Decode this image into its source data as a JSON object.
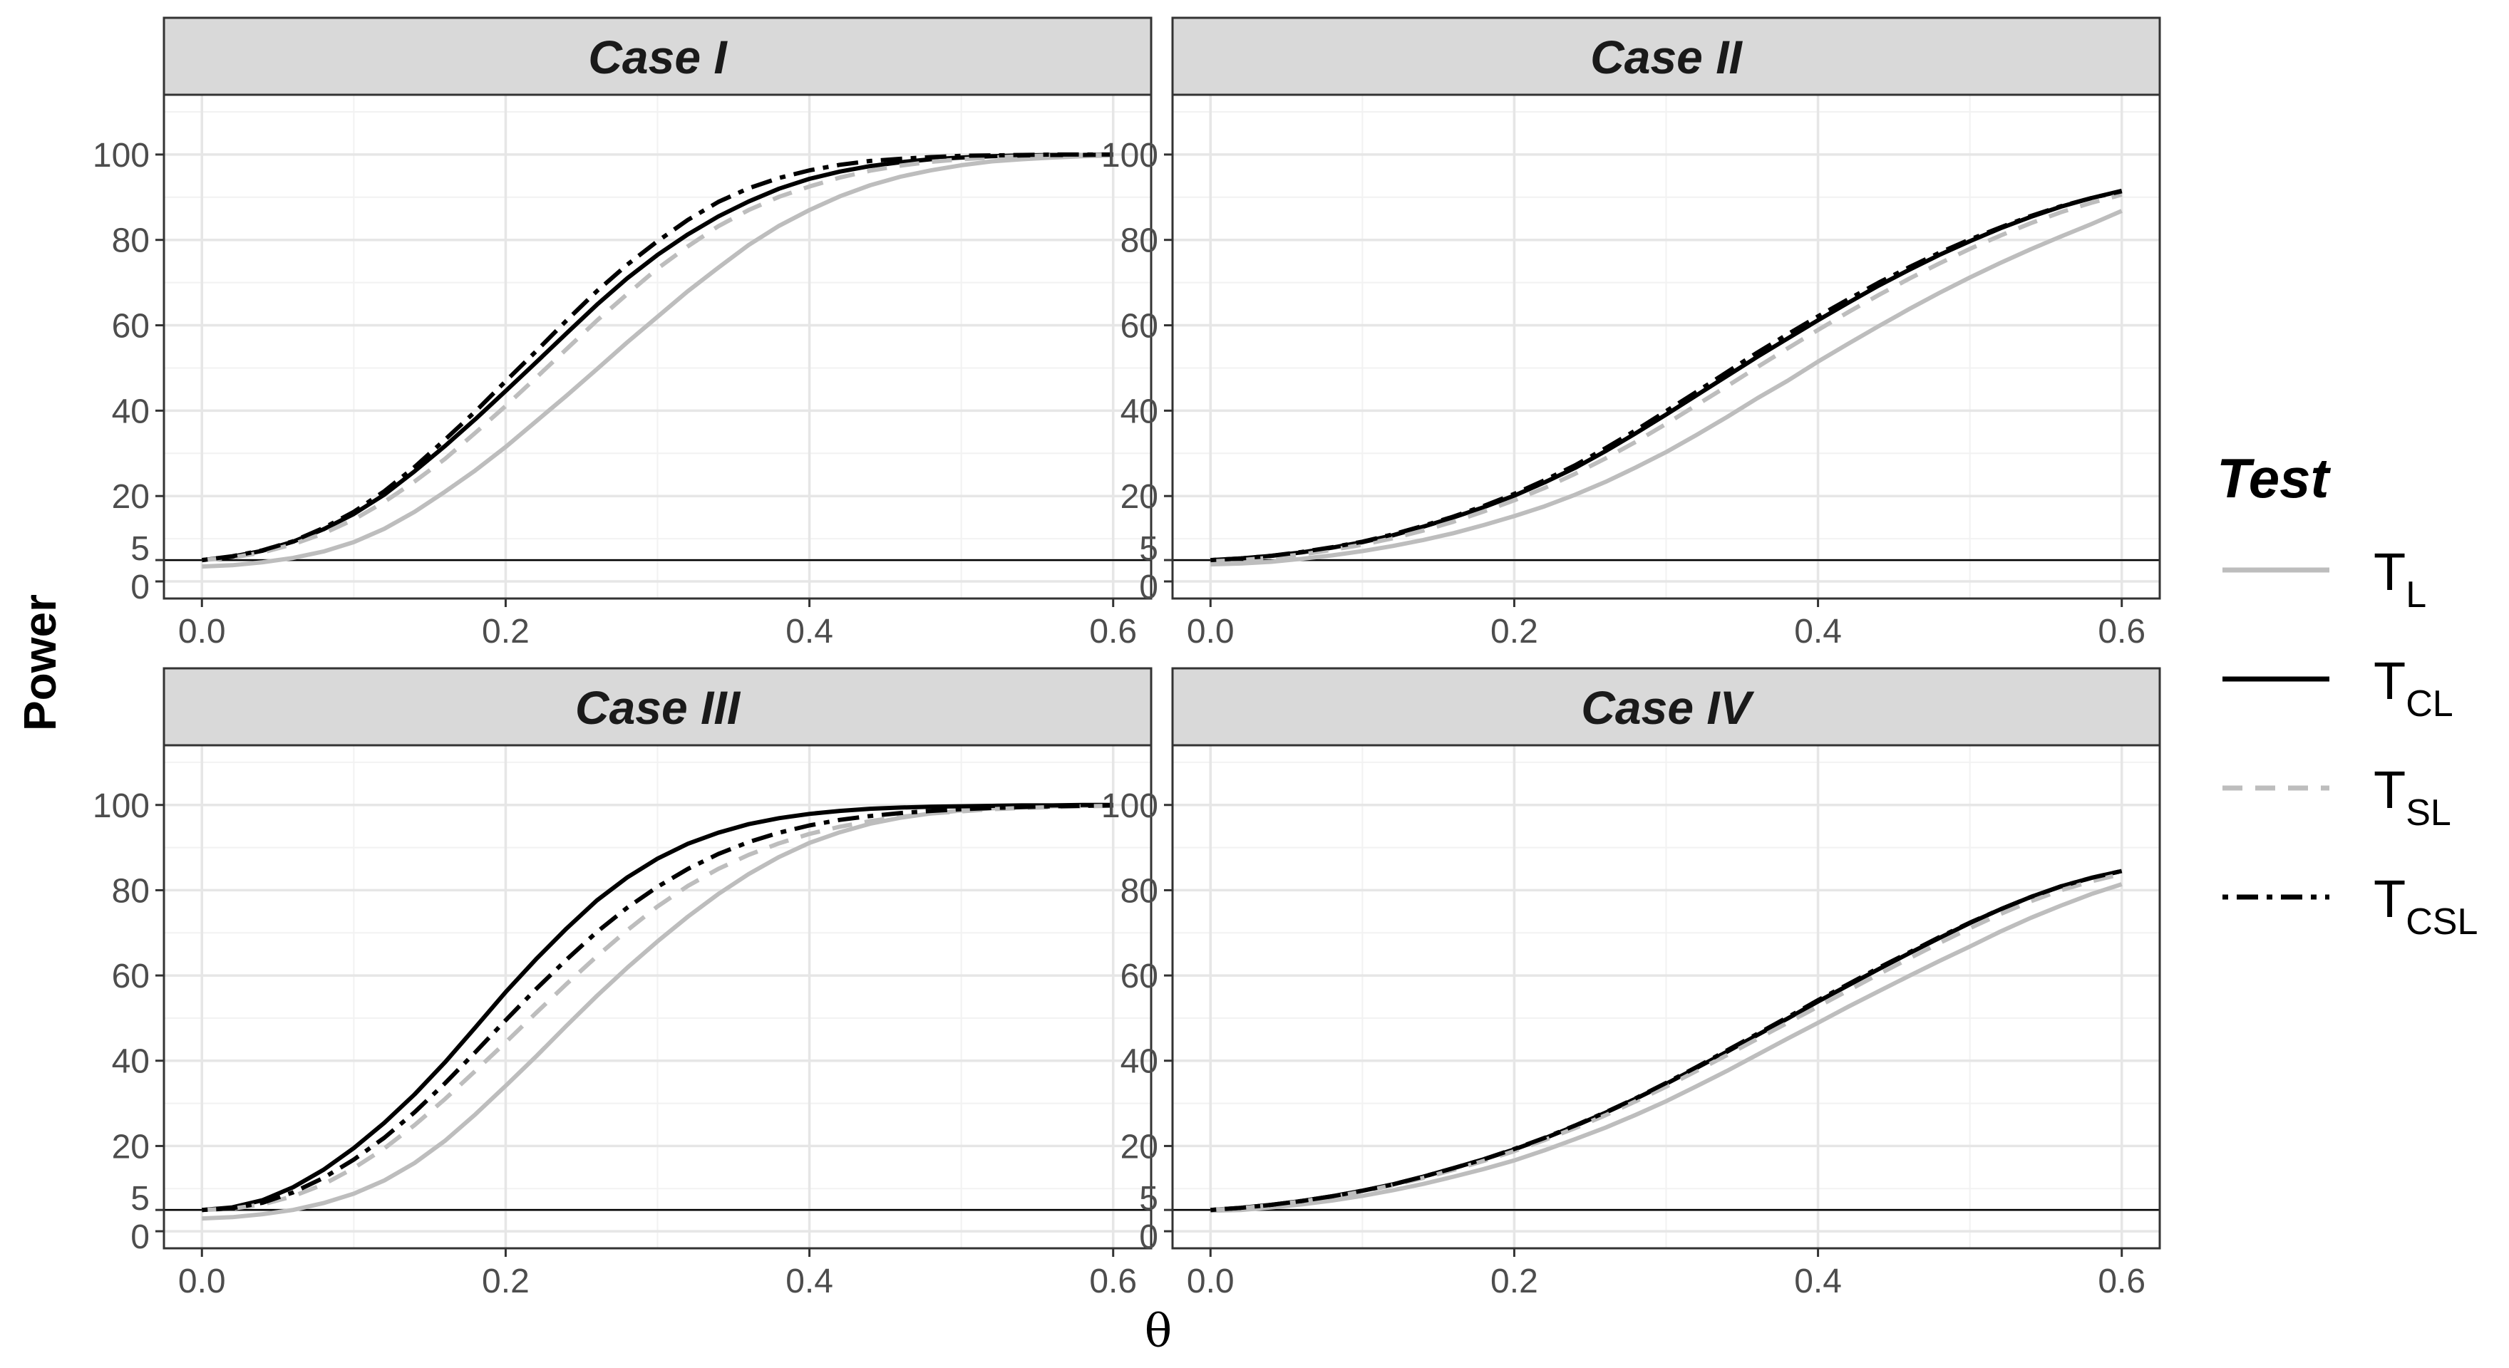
{
  "chart_data": {
    "type": "line",
    "layout": "2x2 facets",
    "ylabel": "Power",
    "xlabel": "θ",
    "xlim": [
      -0.025,
      0.625
    ],
    "ylim": [
      -4,
      114
    ],
    "x_ticks": [
      "0.0",
      "0.2",
      "0.4",
      "0.6"
    ],
    "y_ticks": [
      "0",
      "5",
      "20",
      "40",
      "60",
      "80",
      "100"
    ],
    "reference_line": 5,
    "grid": true,
    "legend": {
      "title": "Test",
      "position": "right",
      "entries": [
        {
          "main": "T",
          "sub": "L"
        },
        {
          "main": "T",
          "sub": "CL"
        },
        {
          "main": "T",
          "sub": "SL"
        },
        {
          "main": "T",
          "sub": "CSL"
        }
      ]
    },
    "series_styles": [
      {
        "color": "#bdbdbd",
        "dash": "solid"
      },
      {
        "color": "#000000",
        "dash": "solid"
      },
      {
        "color": "#bdbdbd",
        "dash": "dashed"
      },
      {
        "color": "#000000",
        "dash": "dotdash"
      }
    ],
    "x": [
      0.0,
      0.02,
      0.04,
      0.06,
      0.08,
      0.1,
      0.12,
      0.14,
      0.16,
      0.18,
      0.2,
      0.22,
      0.24,
      0.26,
      0.28,
      0.3,
      0.32,
      0.34,
      0.36,
      0.38,
      0.4,
      0.42,
      0.44,
      0.46,
      0.48,
      0.5,
      0.52,
      0.54,
      0.56,
      0.58,
      0.6
    ],
    "panels": [
      {
        "title": "Case I",
        "series": [
          {
            "values": [
              3.5,
              3.8,
              4.5,
              5.5,
              7.0,
              9.2,
              12.3,
              16.3,
              21.0,
              26.0,
              31.5,
              37.5,
              43.5,
              49.7,
              56.0,
              62.0,
              68.0,
              73.5,
              78.8,
              83.3,
              87.0,
              90.2,
              92.8,
              94.8,
              96.3,
              97.5,
              98.4,
              98.9,
              99.3,
              99.6,
              99.8
            ]
          },
          {
            "values": [
              5.0,
              5.8,
              7.2,
              9.3,
              12.2,
              15.8,
              20.3,
              25.8,
              31.7,
              38.0,
              44.6,
              51.3,
              58.1,
              64.8,
              71.0,
              76.5,
              81.3,
              85.5,
              89.0,
              92.0,
              94.3,
              96.0,
              97.3,
              98.2,
              98.9,
              99.3,
              99.6,
              99.8,
              99.9,
              99.9,
              100.0
            ]
          },
          {
            "values": [
              5.0,
              5.6,
              6.8,
              8.7,
              11.2,
              14.5,
              18.6,
              23.4,
              28.7,
              34.8,
              41.1,
              47.7,
              54.4,
              61.1,
              67.3,
              73.3,
              78.5,
              83.2,
              87.0,
              90.1,
              92.5,
              94.6,
              96.2,
              97.4,
              98.3,
              98.9,
              99.3,
              99.6,
              99.8,
              99.9,
              99.9
            ]
          },
          {
            "values": [
              5.0,
              5.9,
              7.3,
              9.4,
              12.5,
              16.3,
              21.1,
              26.8,
              33.2,
              39.8,
              46.9,
              53.9,
              61.1,
              68.0,
              74.2,
              79.7,
              84.7,
              88.9,
              92.1,
              94.5,
              96.3,
              97.6,
              98.5,
              99.0,
              99.4,
              99.7,
              99.8,
              99.9,
              100.0,
              100.0,
              100.0
            ]
          }
        ]
      },
      {
        "title": "Case II",
        "series": [
          {
            "values": [
              4.0,
              4.2,
              4.6,
              5.3,
              6.1,
              7.1,
              8.3,
              9.7,
              11.3,
              13.2,
              15.3,
              17.6,
              20.3,
              23.3,
              26.7,
              30.3,
              34.3,
              38.5,
              42.9,
              47.0,
              51.5,
              55.7,
              59.8,
              63.8,
              67.6,
              71.2,
              74.6,
              77.8,
              80.8,
              83.7,
              86.8
            ]
          },
          {
            "values": [
              5.0,
              5.4,
              6.0,
              6.8,
              7.9,
              9.2,
              10.8,
              12.8,
              15.0,
              17.4,
              20.1,
              23.2,
              26.6,
              30.5,
              34.7,
              39.1,
              43.6,
              48.1,
              52.6,
              56.9,
              61.2,
              65.3,
              69.3,
              73.0,
              76.5,
              79.7,
              82.7,
              85.4,
              87.8,
              89.8,
              91.5
            ]
          },
          {
            "values": [
              4.7,
              5.0,
              5.6,
              6.3,
              7.4,
              8.6,
              10.1,
              11.9,
              14.0,
              16.4,
              19.0,
              21.9,
              25.2,
              28.8,
              32.7,
              36.9,
              41.3,
              45.7,
              50.2,
              54.6,
              58.9,
              63.1,
              67.1,
              70.9,
              74.5,
              77.9,
              81.0,
              83.9,
              86.5,
              88.7,
              90.6
            ]
          },
          {
            "values": [
              5.0,
              5.4,
              6.0,
              6.9,
              8.0,
              9.3,
              11.0,
              13.0,
              15.2,
              17.7,
              20.5,
              23.7,
              27.2,
              31.2,
              35.4,
              39.9,
              44.4,
              49.0,
              53.6,
              57.9,
              62.1,
              66.1,
              70.0,
              73.6,
              77.0,
              80.1,
              82.9,
              85.6,
              87.9,
              89.8,
              91.4
            ]
          }
        ]
      },
      {
        "title": "Case III",
        "series": [
          {
            "values": [
              3.0,
              3.3,
              4.0,
              5.0,
              6.6,
              8.8,
              11.9,
              16.0,
              21.2,
              27.4,
              34.1,
              41.0,
              48.2,
              55.2,
              61.8,
              68.0,
              73.8,
              79.1,
              83.8,
              87.8,
              91.1,
              93.6,
              95.6,
              97.0,
              98.0,
              98.7,
              99.2,
              99.5,
              99.7,
              99.8,
              99.9
            ]
          },
          {
            "values": [
              5.0,
              5.6,
              7.3,
              10.3,
              14.4,
              19.5,
              25.4,
              32.1,
              39.6,
              47.8,
              56.1,
              63.8,
              71.0,
              77.6,
              83.0,
              87.4,
              90.9,
              93.5,
              95.5,
              96.9,
              97.9,
              98.6,
              99.1,
              99.4,
              99.6,
              99.7,
              99.8,
              99.9,
              99.9,
              100.0,
              100.0
            ]
          },
          {
            "values": [
              5.0,
              5.3,
              6.3,
              8.2,
              11.0,
              14.8,
              19.4,
              24.9,
              31.0,
              37.6,
              44.3,
              51.2,
              58.0,
              64.5,
              70.6,
              76.2,
              81.0,
              85.0,
              88.3,
              91.0,
              93.2,
              94.9,
              96.2,
              97.2,
              98.0,
              98.5,
              99.0,
              99.3,
              99.5,
              99.7,
              99.8
            ]
          },
          {
            "values": [
              5.0,
              5.4,
              6.7,
              9.1,
              12.5,
              16.8,
              21.9,
              27.9,
              34.7,
              42.0,
              49.5,
              56.8,
              63.7,
              70.2,
              75.9,
              80.8,
              85.0,
              88.5,
              91.3,
              93.5,
              95.2,
              96.5,
              97.4,
              98.1,
              98.6,
              99.0,
              99.3,
              99.5,
              99.7,
              99.8,
              99.9
            ]
          }
        ]
      },
      {
        "title": "Case IV",
        "series": [
          {
            "values": [
              4.8,
              5.0,
              5.6,
              6.3,
              7.2,
              8.3,
              9.6,
              11.1,
              12.8,
              14.6,
              16.6,
              19.0,
              21.6,
              24.3,
              27.3,
              30.5,
              34.0,
              37.6,
              41.4,
              45.2,
              48.9,
              52.7,
              56.3,
              59.9,
              63.4,
              66.8,
              70.3,
              73.5,
              76.4,
              79.1,
              81.4
            ]
          },
          {
            "values": [
              5.0,
              5.5,
              6.2,
              7.1,
              8.2,
              9.5,
              11.0,
              12.8,
              14.8,
              16.9,
              19.2,
              21.8,
              24.7,
              27.8,
              31.1,
              34.6,
              38.3,
              42.1,
              46.0,
              49.9,
              53.9,
              57.7,
              61.5,
              65.2,
              68.8,
              72.3,
              75.5,
              78.4,
              80.9,
              82.9,
              84.5
            ]
          },
          {
            "values": [
              5.0,
              5.4,
              6.1,
              7.0,
              8.0,
              9.3,
              10.8,
              12.5,
              14.4,
              16.5,
              18.8,
              21.4,
              24.2,
              27.2,
              30.5,
              33.9,
              37.6,
              41.3,
              45.1,
              48.9,
              52.7,
              56.5,
              60.3,
              64.0,
              67.6,
              71.1,
              74.4,
              77.4,
              80.0,
              82.1,
              83.8
            ]
          },
          {
            "values": [
              5.0,
              5.5,
              6.2,
              7.1,
              8.2,
              9.5,
              11.0,
              12.8,
              14.8,
              16.9,
              19.3,
              21.9,
              24.8,
              27.9,
              31.2,
              34.8,
              38.5,
              42.4,
              46.3,
              50.2,
              54.2,
              58.0,
              61.8,
              65.4,
              69.0,
              72.4,
              75.5,
              78.4,
              80.9,
              82.9,
              84.5
            ]
          }
        ]
      }
    ]
  }
}
